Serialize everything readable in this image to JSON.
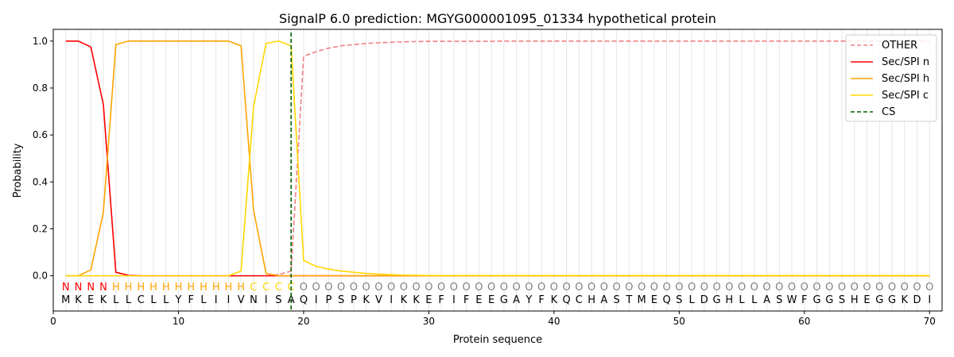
{
  "chart_data": {
    "type": "line",
    "title": "SignalP 6.0 prediction: MGYG000001095_01334 hypothetical protein",
    "xlabel": "Protein sequence",
    "ylabel": "Probability",
    "xlim": [
      0,
      71
    ],
    "ylim": [
      -0.15,
      1.05
    ],
    "xticks": [
      0,
      10,
      20,
      30,
      40,
      50,
      60,
      70
    ],
    "yticks": [
      0.0,
      0.2,
      0.4,
      0.6,
      0.8,
      1.0
    ],
    "grid": "vertical lines at each residue",
    "legend": "top-right",
    "sequence": "MKEKLLCLLYFLIIVNISAQIPSPKVIKKEFIFEEGAYFKQCHASTMEQSLDGHLLASWFGGSHEGGKDI",
    "labels": "NNNNHHHHHHHHHHHCCCCOOOOOOOOOOOOOOOOOOOOOOOOOOOOOOOOOOOOOOOOOOOOOOOOOOO",
    "label_colors": {
      "N": "#ff0000",
      "H": "#ffa500",
      "C": "#ffd700",
      "O": "#808080"
    },
    "cs_position": 19,
    "series": [
      {
        "name": "OTHER",
        "color": "#f08080",
        "dash": true,
        "values": [
          0,
          0,
          0,
          0,
          0,
          0,
          0,
          0,
          0,
          0,
          0,
          0,
          0,
          0,
          0,
          0,
          0,
          0.005,
          0.02,
          0.935,
          0.955,
          0.97,
          0.98,
          0.985,
          0.99,
          0.993,
          0.995,
          0.997,
          0.998,
          0.999,
          0.999,
          0.999,
          0.999,
          0.999,
          0.999,
          1,
          1,
          1,
          1,
          1,
          1,
          1,
          1,
          1,
          1,
          1,
          1,
          1,
          1,
          1,
          1,
          1,
          1,
          1,
          1,
          1,
          1,
          1,
          1,
          1,
          1,
          1,
          1,
          1,
          1,
          1,
          1,
          1,
          1,
          1
        ]
      },
      {
        "name": "Sec/SPI n",
        "color": "#ff0000",
        "values": [
          1,
          1,
          0.975,
          0.73,
          0.015,
          0.002,
          0,
          0,
          0,
          0,
          0,
          0,
          0,
          0,
          0,
          0,
          0,
          0,
          0,
          0,
          0,
          0,
          0,
          0,
          0,
          0,
          0,
          0,
          0,
          0,
          0,
          0,
          0,
          0,
          0,
          0,
          0,
          0,
          0,
          0,
          0,
          0,
          0,
          0,
          0,
          0,
          0,
          0,
          0,
          0,
          0,
          0,
          0,
          0,
          0,
          0,
          0,
          0,
          0,
          0,
          0,
          0,
          0,
          0,
          0,
          0,
          0,
          0,
          0,
          0
        ]
      },
      {
        "name": "Sec/SPI h",
        "color": "#ffa500",
        "values": [
          0,
          0,
          0.025,
          0.27,
          0.985,
          1,
          1,
          1,
          1,
          1,
          1,
          1,
          1,
          1,
          0.98,
          0.28,
          0.01,
          0,
          0,
          0,
          0,
          0,
          0,
          0,
          0,
          0,
          0,
          0,
          0,
          0,
          0,
          0,
          0,
          0,
          0,
          0,
          0,
          0,
          0,
          0,
          0,
          0,
          0,
          0,
          0,
          0,
          0,
          0,
          0,
          0,
          0,
          0,
          0,
          0,
          0,
          0,
          0,
          0,
          0,
          0,
          0,
          0,
          0,
          0,
          0,
          0,
          0,
          0,
          0,
          0
        ]
      },
      {
        "name": "Sec/SPI c",
        "color": "#ffd700",
        "values": [
          0,
          0,
          0,
          0,
          0,
          0,
          0,
          0,
          0,
          0,
          0,
          0,
          0,
          0,
          0.02,
          0.72,
          0.99,
          1,
          0.98,
          0.065,
          0.04,
          0.028,
          0.02,
          0.015,
          0.01,
          0.007,
          0.005,
          0.003,
          0.002,
          0.001,
          0.001,
          0.001,
          0.001,
          0.001,
          0.001,
          0.001,
          0.001,
          0.001,
          0.001,
          0.001,
          0.001,
          0.001,
          0.001,
          0.001,
          0.001,
          0.001,
          0.001,
          0.001,
          0.001,
          0.001,
          0.001,
          0.001,
          0.001,
          0.001,
          0.001,
          0.001,
          0.001,
          0.001,
          0.001,
          0.001,
          0.001,
          0.001,
          0.001,
          0.001,
          0.001,
          0.001,
          0.001,
          0.001,
          0.001,
          0.001
        ]
      }
    ],
    "cs_legend": {
      "name": "CS",
      "color": "#006400"
    }
  }
}
